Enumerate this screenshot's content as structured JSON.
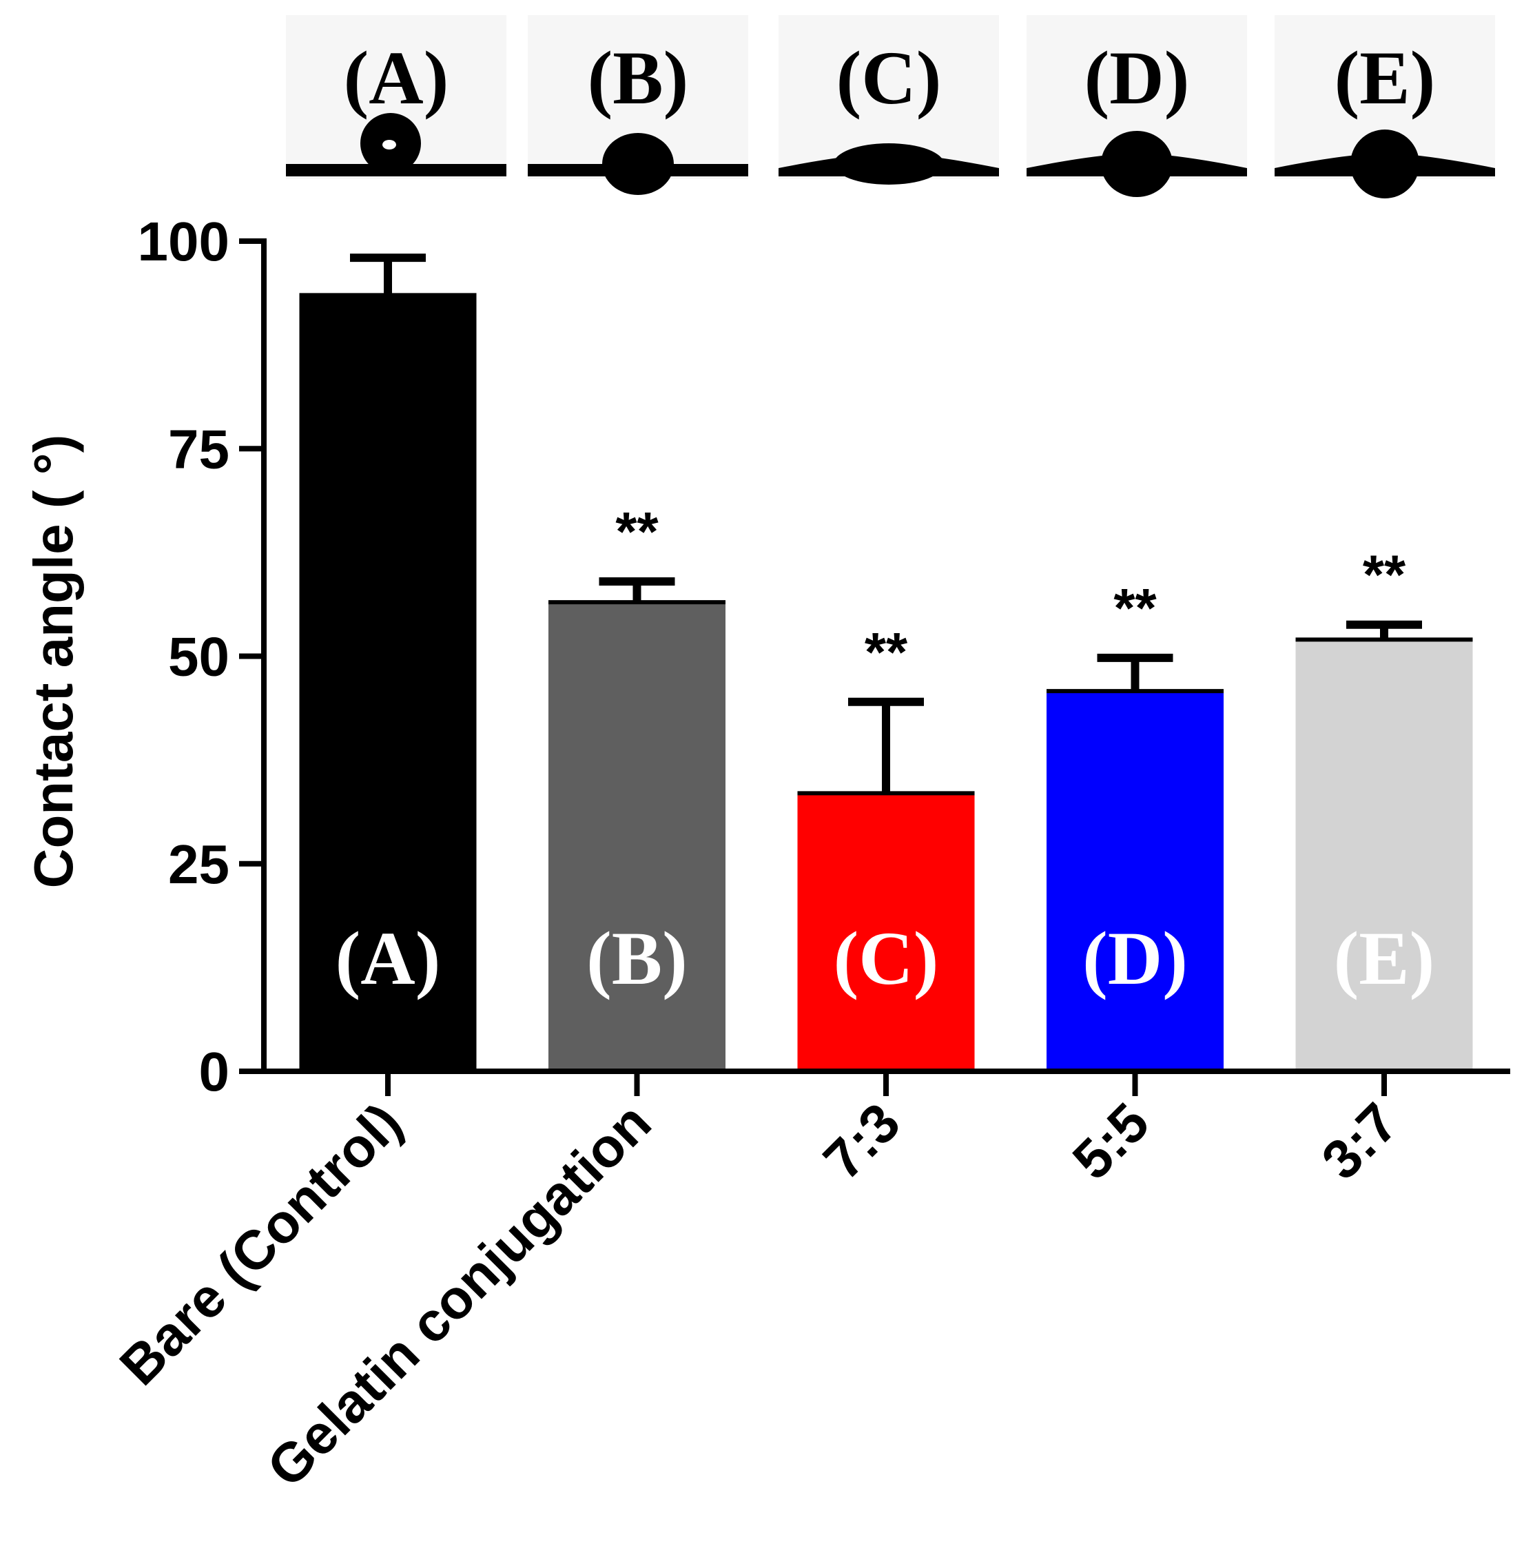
{
  "chart_data": {
    "type": "bar",
    "title": "",
    "xlabel": "",
    "ylabel": "Contact angle ( °)",
    "ylim": [
      0,
      100
    ],
    "yticks": [
      "0",
      "25",
      "50",
      "75",
      "100"
    ],
    "categories": [
      "Bare (Control)",
      "Gelatin conjugation",
      "7:3",
      "5:5",
      "3:7"
    ],
    "values": [
      93.5,
      56.5,
      33.5,
      45.8,
      52
    ],
    "errors": [
      4.5,
      2.5,
      11,
      4,
      1.8
    ],
    "significance": [
      "",
      "**",
      "**",
      "**",
      "**"
    ],
    "bar_labels": [
      "(A)",
      "(B)",
      "(C)",
      "(D)",
      "(E)"
    ],
    "colors": [
      "#000000",
      "#5f5f5f",
      "#ff0000",
      "#0000ff",
      "#d3d3d3"
    ],
    "droplet_panels": {
      "labels": [
        "(A)",
        "(B)",
        "(C)",
        "(D)",
        "(E)"
      ],
      "contact_angles": [
        150,
        80,
        25,
        70,
        75
      ]
    },
    "grid": false,
    "legend": "none"
  }
}
